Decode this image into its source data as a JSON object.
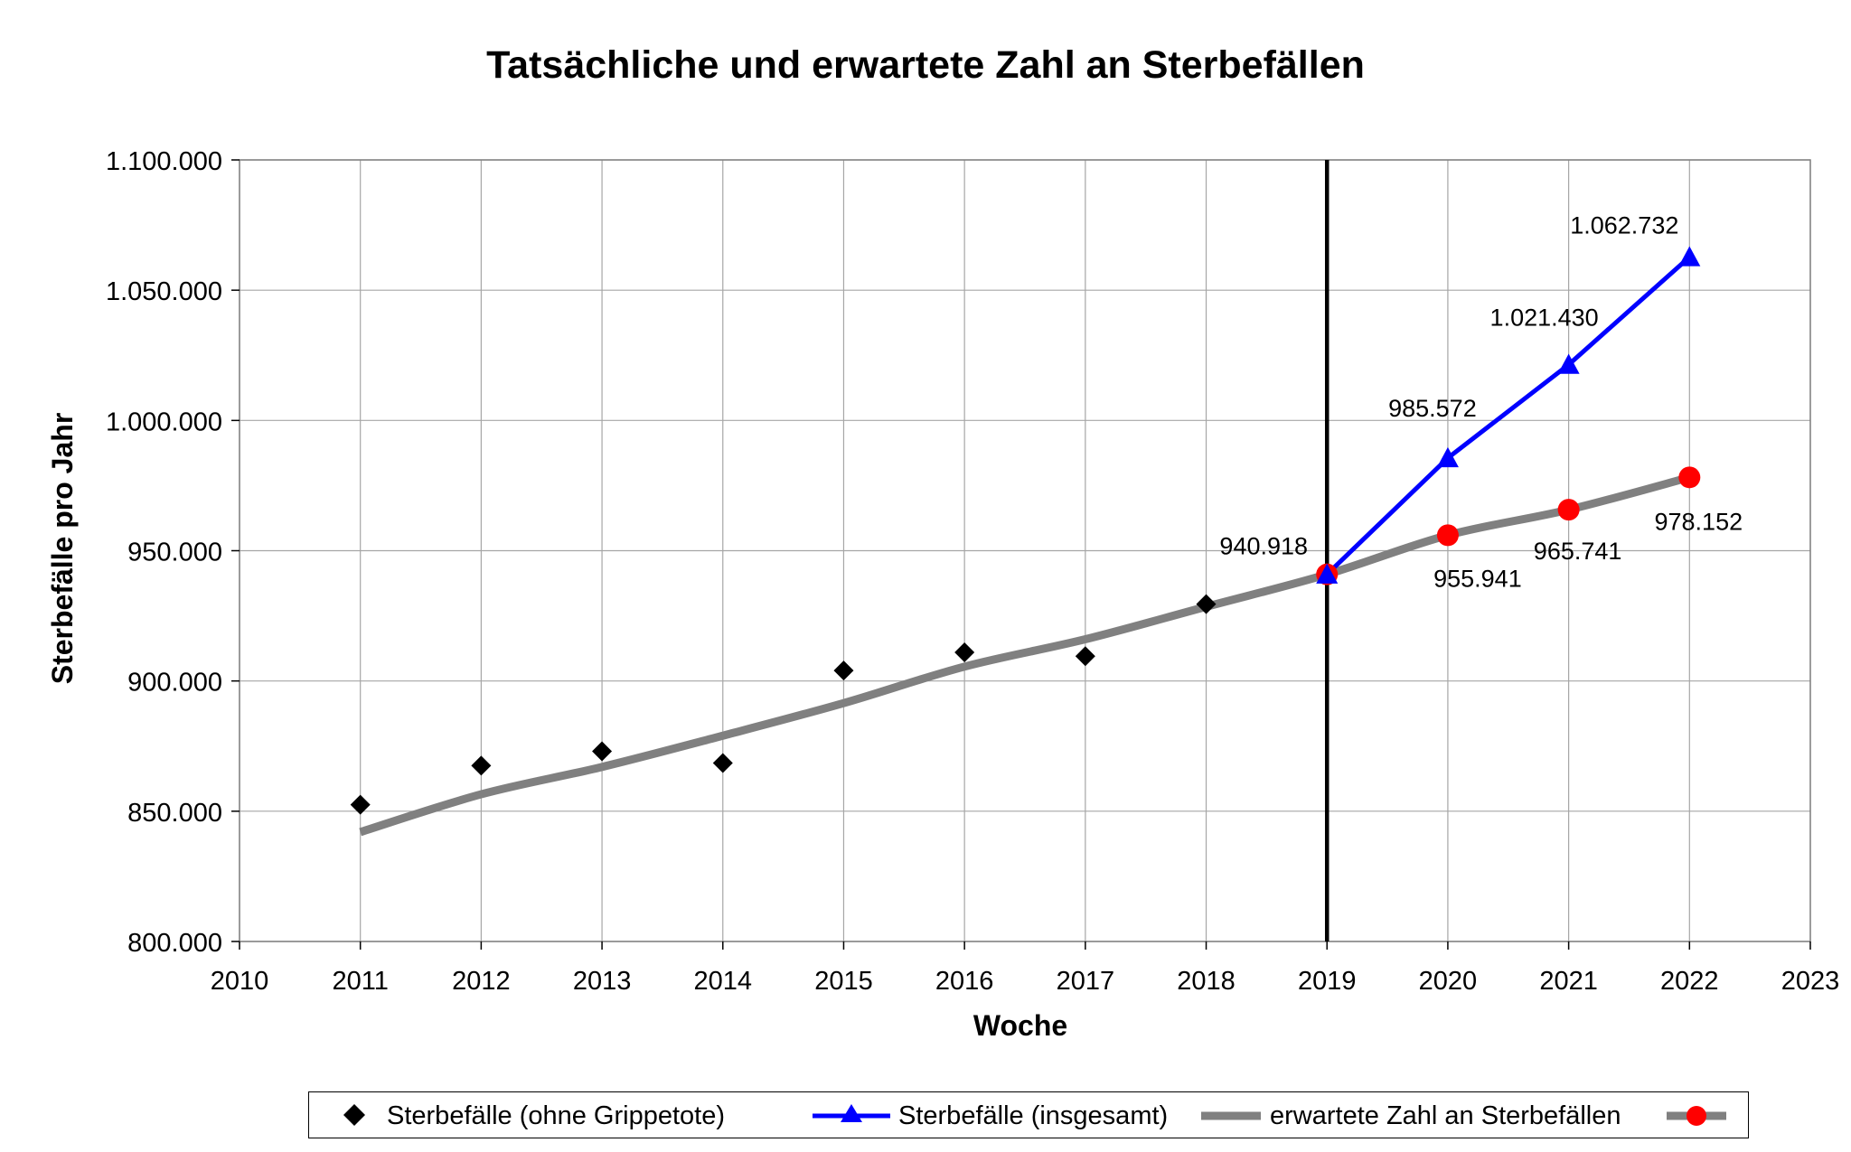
{
  "chart_data": {
    "type": "line",
    "title": "Tatsächliche und erwartete Zahl an Sterbefällen",
    "xlabel": "Woche",
    "ylabel": "Sterbefälle pro Jahr",
    "xlim": [
      2010,
      2023
    ],
    "ylim": [
      800000,
      1100000
    ],
    "x_ticks": [
      "2010",
      "2011",
      "2012",
      "2013",
      "2014",
      "2015",
      "2016",
      "2017",
      "2018",
      "2019",
      "2020",
      "2021",
      "2022",
      "2023"
    ],
    "y_ticks": [
      "800.000",
      "850.000",
      "900.000",
      "950.000",
      "1.000.000",
      "1.050.000",
      "1.100.000"
    ],
    "grid": true,
    "legend_position": "bottom",
    "vertical_line_x": 2019,
    "series": [
      {
        "name": "Sterbefälle (ohne Grippetote)",
        "style": "markers",
        "marker": "diamond",
        "color": "#000000",
        "points": [
          {
            "x": 2011,
            "y": 852500
          },
          {
            "x": 2012,
            "y": 867500
          },
          {
            "x": 2013,
            "y": 873000
          },
          {
            "x": 2014,
            "y": 868500
          },
          {
            "x": 2015,
            "y": 904000
          },
          {
            "x": 2016,
            "y": 911000
          },
          {
            "x": 2017,
            "y": 909500
          },
          {
            "x": 2018,
            "y": 929500
          }
        ]
      },
      {
        "name": "Sterbefälle (insgesamt)",
        "style": "line+markers",
        "marker": "triangle",
        "color": "#0000ff",
        "points": [
          {
            "x": 2019,
            "y": 940918
          },
          {
            "x": 2020,
            "y": 985572,
            "label": "985.572"
          },
          {
            "x": 2021,
            "y": 1021430,
            "label": "1.021.430"
          },
          {
            "x": 2022,
            "y": 1062732,
            "label": "1.062.732"
          }
        ]
      },
      {
        "name": "erwartete Zahl an Sterbefällen",
        "style": "line",
        "color": "#808080",
        "points": [
          {
            "x": 2011,
            "y": 842000
          },
          {
            "x": 2012,
            "y": 856500
          },
          {
            "x": 2013,
            "y": 867000
          },
          {
            "x": 2014,
            "y": 879000
          },
          {
            "x": 2015,
            "y": 891500
          },
          {
            "x": 2016,
            "y": 905500
          },
          {
            "x": 2017,
            "y": 916000
          },
          {
            "x": 2018,
            "y": 928500
          },
          {
            "x": 2019,
            "y": 940918
          },
          {
            "x": 2020,
            "y": 955941
          },
          {
            "x": 2021,
            "y": 965741
          },
          {
            "x": 2022,
            "y": 978152
          }
        ]
      },
      {
        "name": "",
        "style": "line+markers",
        "marker": "circle",
        "color": "#ff0000",
        "line_color": "#808080",
        "points": [
          {
            "x": 2019,
            "y": 940918,
            "label": "940.918"
          },
          {
            "x": 2020,
            "y": 955941,
            "label": "955.941"
          },
          {
            "x": 2021,
            "y": 965741,
            "label": "965.741"
          },
          {
            "x": 2022,
            "y": 978152,
            "label": "978.152"
          }
        ]
      }
    ]
  }
}
